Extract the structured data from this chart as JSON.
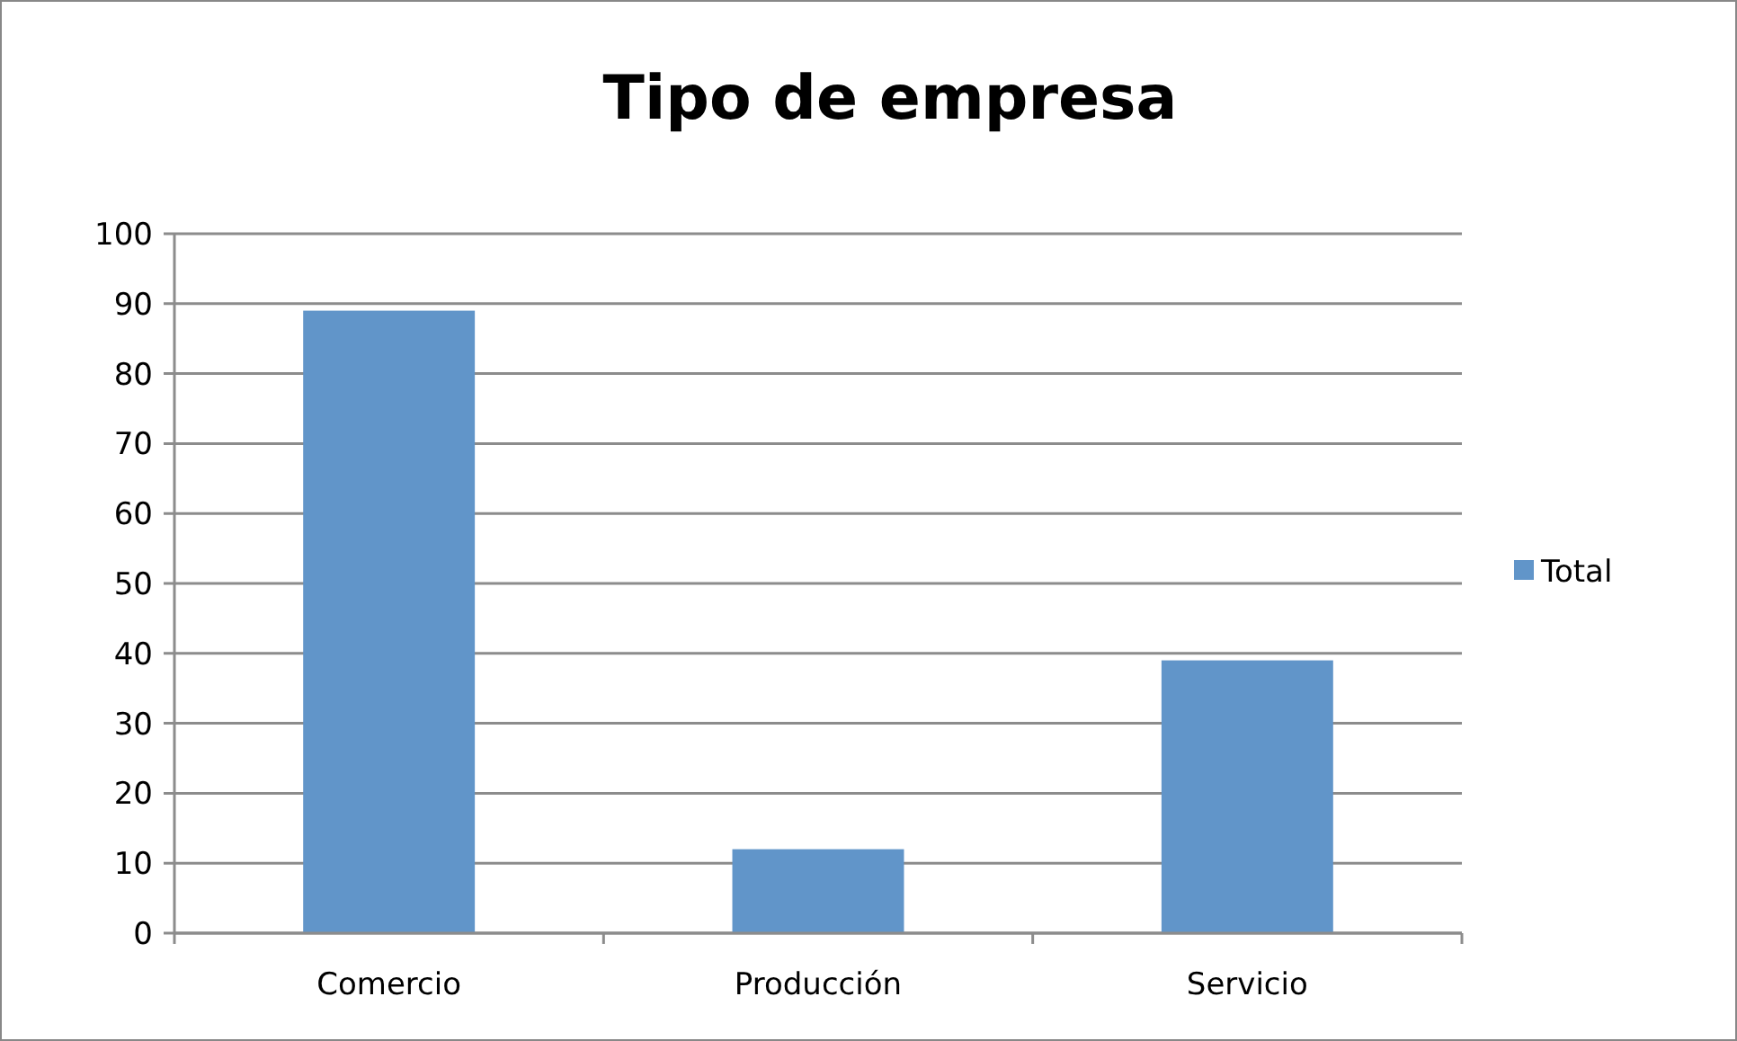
{
  "chart_data": {
    "type": "bar",
    "title": "Tipo de empresa",
    "categories": [
      "Comercio",
      "Producción",
      "Servicio"
    ],
    "series": [
      {
        "name": "Total",
        "color": "#6195c9",
        "values": [
          89,
          12,
          39
        ]
      }
    ],
    "ylim": [
      0,
      100
    ],
    "yticks": [
      0,
      10,
      20,
      30,
      40,
      50,
      60,
      70,
      80,
      90,
      100
    ],
    "grid": "y",
    "legend": "right"
  }
}
